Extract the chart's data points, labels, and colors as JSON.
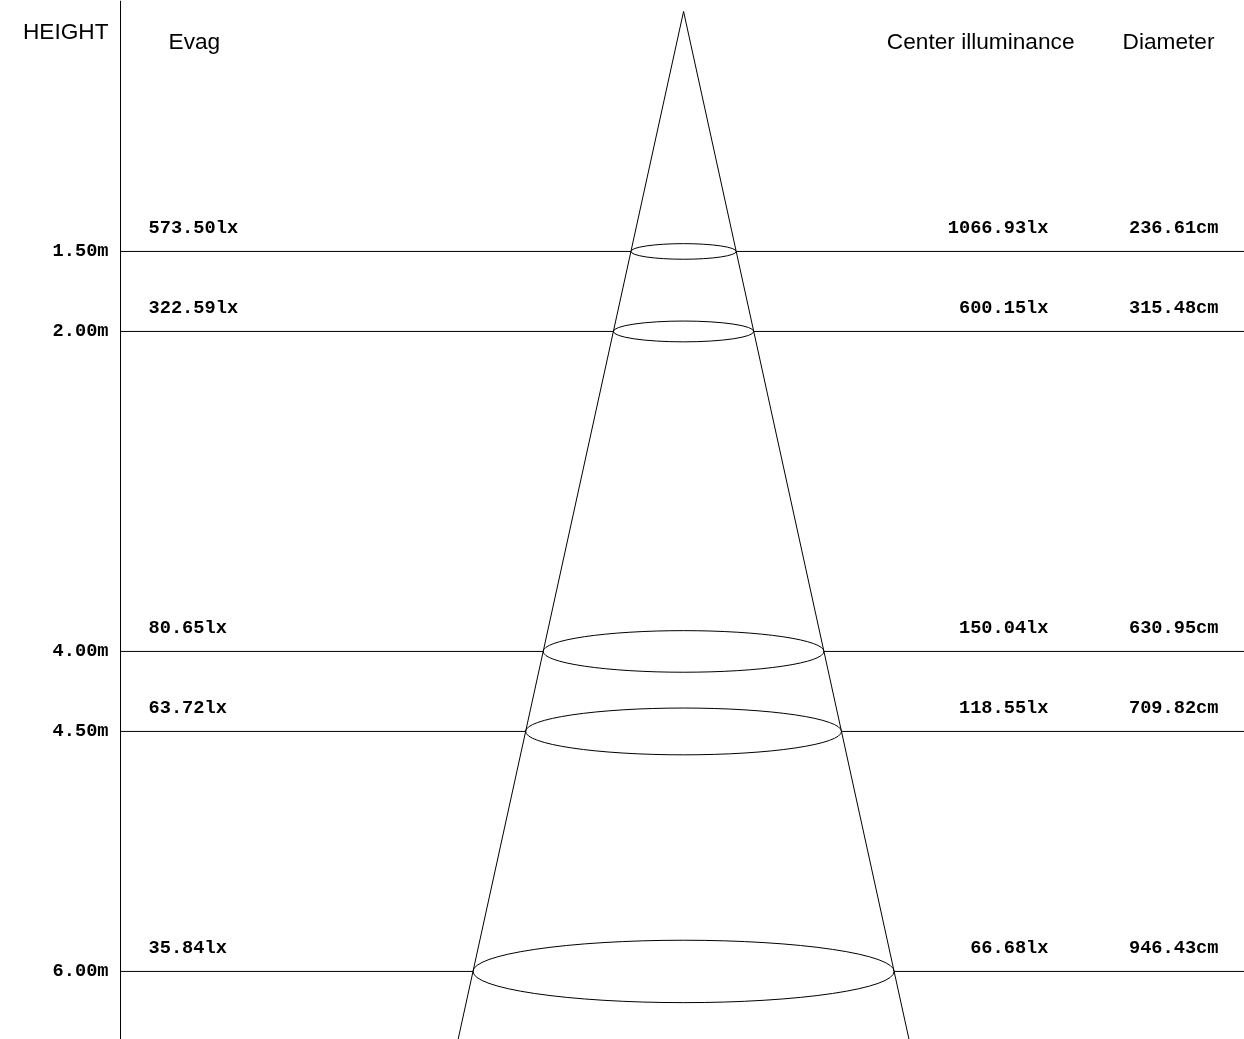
{
  "chart_data": {
    "type": "other",
    "ylabel": "HEIGHT",
    "categories": [
      "1.50m",
      "2.00m",
      "4.00m",
      "4.50m",
      "6.00m"
    ],
    "series": [
      {
        "name": "Evag",
        "color": "#000000",
        "values": [
          573.5,
          322.59,
          80.65,
          63.72,
          35.84
        ],
        "value_labels": [
          "573.50lx",
          "322.59lx",
          "80.65lx",
          "63.72lx",
          "35.84lx"
        ]
      },
      {
        "name": "Center illuminance",
        "color": "#000000",
        "values": [
          1066.93,
          600.15,
          150.04,
          118.55,
          66.68
        ],
        "value_labels": [
          "1066.93lx",
          "600.15lx",
          "150.04lx",
          "118.55lx",
          "66.68lx"
        ]
      },
      {
        "name": "Diameter",
        "color": "#000000",
        "values": [
          236.61,
          315.48,
          630.95,
          709.82,
          946.43
        ],
        "value_labels": [
          "236.61cm",
          "315.48cm",
          "630.95cm",
          "709.82cm",
          "946.43cm"
        ]
      }
    ]
  }
}
